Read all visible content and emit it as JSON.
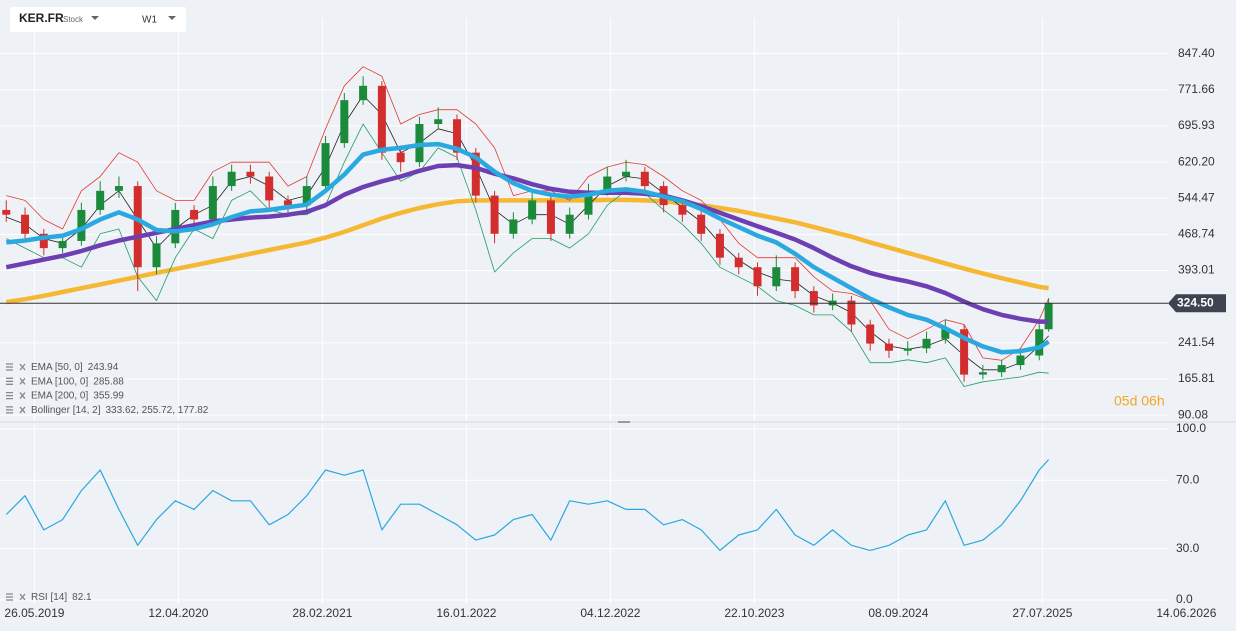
{
  "header": {
    "symbol": "KER.FR",
    "asset_type": "Stock",
    "timeframe": "W1",
    "countdown": "05d 06h"
  },
  "chart_data": [
    {
      "type": "candlestick",
      "x": [
        -9,
        -3,
        3,
        9,
        15,
        21,
        27,
        33,
        39,
        45,
        51,
        57,
        63,
        69,
        75,
        81,
        87,
        93,
        99,
        105,
        111,
        117,
        123,
        129,
        135,
        141,
        147,
        153,
        159,
        165,
        171,
        177,
        183,
        189,
        195,
        201,
        207,
        213,
        219,
        225,
        231,
        237,
        243,
        249,
        255,
        261,
        267,
        273,
        279,
        285,
        291,
        297,
        303,
        309,
        315,
        321,
        324
      ],
      "xlim": [
        -11,
        373
      ],
      "xticks": [
        {
          "value": 0,
          "label": "26.05.2019"
        },
        {
          "value": 46,
          "label": "12.04.2020"
        },
        {
          "value": 92,
          "label": "28.02.2021"
        },
        {
          "value": 138,
          "label": "16.01.2022"
        },
        {
          "value": 184,
          "label": "04.12.2022"
        },
        {
          "value": 230,
          "label": "22.10.2023"
        },
        {
          "value": 276,
          "label": "08.09.2024"
        },
        {
          "value": 322,
          "label": "27.07.2025"
        },
        {
          "value": 368,
          "label": "14.06.2026"
        }
      ],
      "ylim": [
        82,
        920
      ],
      "yticks": [
        {
          "value": 847.4,
          "label": "847.40"
        },
        771.66,
        695.93,
        {
          "value": 620.2,
          "label": "620.20"
        },
        544.47,
        468.74,
        393.01,
        241.54,
        165.81,
        90.08
      ],
      "grid": true,
      "up_color": "#1b8a3a",
      "down_color": "#d32e2e",
      "open": [
        520,
        510,
        470,
        440,
        455,
        520,
        560,
        570,
        400,
        450,
        520,
        500,
        570,
        600,
        590,
        540,
        530,
        570,
        660,
        750,
        780,
        640,
        620,
        700,
        710,
        640,
        550,
        470,
        500,
        540,
        470,
        510,
        560,
        590,
        600,
        570,
        530,
        510,
        470,
        420,
        400,
        360,
        400,
        350,
        320,
        330,
        280,
        240,
        225,
        230,
        250,
        270,
        175,
        180,
        195,
        215,
        270
      ],
      "high": [
        540,
        525,
        480,
        470,
        535,
        580,
        590,
        580,
        465,
        535,
        530,
        590,
        615,
        615,
        600,
        550,
        590,
        675,
        765,
        800,
        790,
        655,
        715,
        735,
        720,
        650,
        560,
        515,
        555,
        550,
        525,
        575,
        610,
        625,
        610,
        580,
        540,
        520,
        480,
        430,
        410,
        425,
        410,
        360,
        345,
        340,
        290,
        250,
        245,
        265,
        290,
        280,
        195,
        205,
        230,
        285,
        335
      ],
      "low": [
        495,
        455,
        425,
        430,
        445,
        510,
        545,
        350,
        385,
        440,
        485,
        490,
        560,
        575,
        525,
        515,
        520,
        560,
        650,
        740,
        625,
        600,
        610,
        690,
        625,
        535,
        450,
        460,
        490,
        455,
        460,
        500,
        550,
        580,
        555,
        515,
        495,
        455,
        405,
        385,
        340,
        350,
        335,
        305,
        310,
        265,
        225,
        210,
        215,
        220,
        240,
        160,
        165,
        170,
        185,
        205,
        265
      ],
      "close": [
        510,
        470,
        440,
        455,
        520,
        560,
        570,
        400,
        450,
        520,
        500,
        570,
        600,
        590,
        540,
        530,
        570,
        660,
        750,
        780,
        640,
        620,
        700,
        710,
        640,
        550,
        470,
        500,
        540,
        470,
        510,
        560,
        590,
        600,
        570,
        530,
        510,
        470,
        420,
        400,
        360,
        400,
        350,
        320,
        330,
        280,
        240,
        225,
        230,
        250,
        270,
        175,
        180,
        195,
        215,
        270,
        324.5
      ],
      "last_price": {
        "value": 324.5,
        "label": "324.50"
      },
      "series": [
        {
          "name": "EMA [50, 0]",
          "last_value": 243.94,
          "color": "#2aa8e0",
          "width": 4.5,
          "values": [
            452,
            456,
            462,
            466,
            480,
            500,
            515,
            500,
            478,
            475,
            480,
            490,
            505,
            517,
            520,
            526,
            531,
            560,
            594,
            636,
            646,
            650,
            656,
            658,
            648,
            630,
            600,
            576,
            560,
            552,
            548,
            552,
            560,
            563,
            558,
            548,
            538,
            522,
            502,
            484,
            466,
            452,
            428,
            400,
            378,
            356,
            334,
            316,
            300,
            290,
            272,
            252,
            234,
            222,
            224,
            232,
            244
          ]
        },
        {
          "name": "EMA [100, 0]",
          "last_value": 285.88,
          "color": "#6d3fb3",
          "width": 4.5,
          "values": [
            400,
            408,
            416,
            424,
            434,
            446,
            456,
            464,
            472,
            480,
            488,
            496,
            500,
            504,
            506,
            510,
            516,
            530,
            552,
            568,
            580,
            590,
            602,
            612,
            614,
            608,
            596,
            586,
            574,
            564,
            558,
            556,
            556,
            556,
            554,
            550,
            540,
            528,
            514,
            500,
            486,
            472,
            458,
            440,
            420,
            402,
            388,
            378,
            370,
            360,
            346,
            328,
            312,
            300,
            292,
            286,
            286
          ]
        },
        {
          "name": "EMA [200, 0]",
          "last_value": 355.99,
          "color": "#f6b733",
          "width": 4.5,
          "values": [
            327,
            333,
            340,
            348,
            356,
            364,
            372,
            380,
            388,
            396,
            404,
            412,
            420,
            428,
            436,
            444,
            452,
            462,
            474,
            488,
            502,
            514,
            524,
            532,
            538,
            540,
            540,
            540,
            540,
            540,
            540,
            540,
            541,
            541,
            540,
            538,
            534,
            530,
            524,
            518,
            510,
            502,
            494,
            484,
            474,
            464,
            452,
            441,
            430,
            419,
            408,
            397,
            387,
            377,
            368,
            359,
            356
          ]
        }
      ],
      "bollinger": {
        "name": "Bollinger [14, 2]",
        "reading": "333.62,  255.72,  177.82",
        "upper_color": "#e53935",
        "middle_color": "#222222",
        "lower_color": "#1e9e62",
        "upper": [
          550,
          540,
          500,
          480,
          560,
          590,
          640,
          620,
          560,
          540,
          540,
          600,
          620,
          620,
          620,
          570,
          590,
          690,
          780,
          820,
          800,
          700,
          720,
          730,
          730,
          700,
          650,
          550,
          560,
          560,
          540,
          590,
          610,
          620,
          615,
          590,
          560,
          540,
          500,
          450,
          420,
          420,
          420,
          380,
          350,
          345,
          330,
          270,
          250,
          270,
          290,
          280,
          210,
          205,
          230,
          290,
          334
        ],
        "middle": [
          505,
          490,
          460,
          450,
          480,
          530,
          560,
          500,
          440,
          480,
          510,
          530,
          580,
          590,
          570,
          540,
          550,
          610,
          700,
          760,
          720,
          640,
          660,
          690,
          680,
          610,
          520,
          490,
          510,
          510,
          490,
          530,
          570,
          590,
          585,
          555,
          525,
          495,
          450,
          415,
          390,
          375,
          370,
          340,
          325,
          305,
          265,
          235,
          228,
          235,
          250,
          215,
          185,
          185,
          200,
          235,
          256
        ],
        "lower": [
          460,
          440,
          420,
          420,
          400,
          470,
          480,
          380,
          330,
          420,
          480,
          460,
          540,
          560,
          520,
          510,
          510,
          530,
          620,
          700,
          640,
          580,
          600,
          650,
          630,
          520,
          390,
          430,
          460,
          460,
          440,
          470,
          530,
          560,
          555,
          520,
          490,
          450,
          400,
          380,
          360,
          330,
          320,
          300,
          300,
          265,
          200,
          200,
          206,
          200,
          210,
          150,
          160,
          165,
          170,
          180,
          178
        ]
      }
    },
    {
      "type": "line",
      "name": "RSI [14]",
      "last_value": 82.1,
      "color": "#2aa8e0",
      "ylim": [
        0,
        100
      ],
      "yticks": [
        {
          "value": 100,
          "label": "100.0"
        },
        {
          "value": 70,
          "label": "70.0"
        },
        {
          "value": 30,
          "label": "30.0"
        },
        {
          "value": 0,
          "label": "0.0"
        }
      ],
      "values": [
        50,
        61,
        41,
        47,
        64,
        76,
        53,
        32,
        47,
        58,
        53,
        64,
        58,
        58,
        44,
        50,
        61,
        76,
        73,
        76,
        41,
        56,
        56,
        50,
        44,
        35,
        38,
        47,
        50,
        35,
        58,
        56,
        58,
        53,
        53,
        44,
        47,
        41,
        29,
        38,
        41,
        53,
        38,
        32,
        41,
        32,
        29,
        32,
        38,
        41,
        58,
        32,
        35,
        44,
        58,
        76,
        82.1
      ]
    }
  ]
}
